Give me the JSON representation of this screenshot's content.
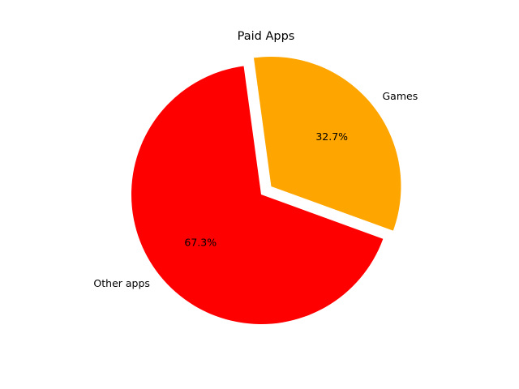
{
  "chart_data": {
    "type": "pie",
    "title": "Paid Apps",
    "slices": [
      {
        "label": "Games",
        "value": 32.7,
        "pct_label": "32.7%",
        "color": "#FFA500",
        "exploded": true
      },
      {
        "label": "Other apps",
        "value": 67.3,
        "pct_label": "67.3%",
        "color": "#FF0000",
        "exploded": false
      }
    ],
    "autopct": true,
    "legend": "none"
  }
}
